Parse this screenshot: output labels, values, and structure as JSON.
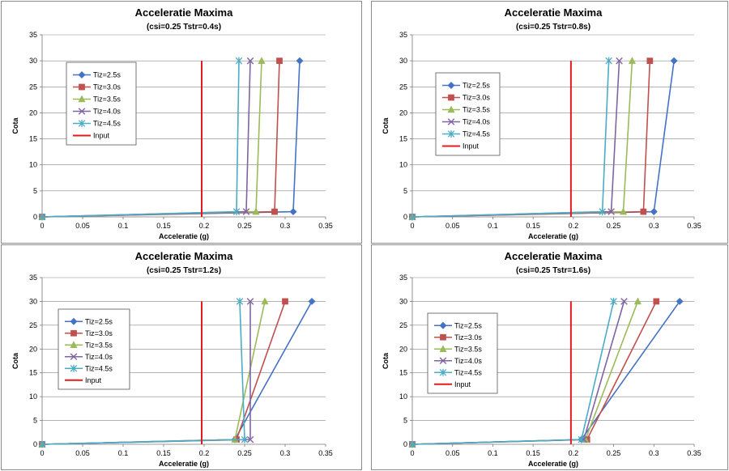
{
  "series_styles": [
    {
      "name": "Tiz=2.5s",
      "color": "#4472c4",
      "marker": "diamond"
    },
    {
      "name": "Tiz=3.0s",
      "color": "#c0504d",
      "marker": "square"
    },
    {
      "name": "Tiz=3.5s",
      "color": "#9bbb59",
      "marker": "triangle"
    },
    {
      "name": "Tiz=4.0s",
      "color": "#8064a2",
      "marker": "x"
    },
    {
      "name": "Tiz=4.5s",
      "color": "#4bacc6",
      "marker": "star"
    },
    {
      "name": "Input",
      "color": "#e41a1c",
      "marker": "none"
    }
  ],
  "chart_data": [
    {
      "type": "line",
      "title": "Acceleratie Maxima",
      "subtitle": "(csi=0.25  Tstr=0.4s)",
      "xlabel": "Acceleratie (g)",
      "ylabel": "Cota",
      "xlim": [
        0,
        0.35
      ],
      "ylim": [
        0,
        35
      ],
      "xticks": [
        "0",
        "0.05",
        "0.1",
        "0.15",
        "0.2",
        "0.25",
        "0.3",
        "0.35"
      ],
      "yticks": [
        "0",
        "5",
        "10",
        "15",
        "20",
        "25",
        "30",
        "35"
      ],
      "grid": true,
      "legend_position": "upper-left",
      "series": [
        {
          "name": "Tiz=2.5s",
          "points": [
            [
              0,
              0
            ],
            [
              0.31,
              1
            ],
            [
              0.318,
              30
            ]
          ]
        },
        {
          "name": "Tiz=3.0s",
          "points": [
            [
              0,
              0
            ],
            [
              0.287,
              1
            ],
            [
              0.293,
              30
            ]
          ]
        },
        {
          "name": "Tiz=3.5s",
          "points": [
            [
              0,
              0
            ],
            [
              0.264,
              1
            ],
            [
              0.271,
              30
            ]
          ]
        },
        {
          "name": "Tiz=4.0s",
          "points": [
            [
              0,
              0
            ],
            [
              0.252,
              1
            ],
            [
              0.257,
              30
            ]
          ]
        },
        {
          "name": "Tiz=4.5s",
          "points": [
            [
              0,
              0
            ],
            [
              0.24,
              1
            ],
            [
              0.243,
              30
            ]
          ]
        },
        {
          "name": "Input",
          "points": [
            [
              0.197,
              0
            ],
            [
              0.197,
              30
            ]
          ]
        }
      ]
    },
    {
      "type": "line",
      "title": "Acceleratie Maxima",
      "subtitle": "(csi=0.25  Tstr=0.8s)",
      "xlabel": "Acceleratie (g)",
      "ylabel": "Cota",
      "xlim": [
        0,
        0.35
      ],
      "ylim": [
        0,
        35
      ],
      "xticks": [
        "0",
        "0.05",
        "0.1",
        "0.15",
        "0.2",
        "0.25",
        "0.3",
        "0.35"
      ],
      "yticks": [
        "0",
        "5",
        "10",
        "15",
        "20",
        "25",
        "30",
        "35"
      ],
      "grid": true,
      "legend_position": "upper-left",
      "series": [
        {
          "name": "Tiz=2.5s",
          "points": [
            [
              0,
              0
            ],
            [
              0.3,
              1
            ],
            [
              0.325,
              30
            ]
          ]
        },
        {
          "name": "Tiz=3.0s",
          "points": [
            [
              0,
              0
            ],
            [
              0.287,
              1
            ],
            [
              0.295,
              30
            ]
          ]
        },
        {
          "name": "Tiz=3.5s",
          "points": [
            [
              0,
              0
            ],
            [
              0.262,
              1
            ],
            [
              0.273,
              30
            ]
          ]
        },
        {
          "name": "Tiz=4.0s",
          "points": [
            [
              0,
              0
            ],
            [
              0.247,
              1
            ],
            [
              0.257,
              30
            ]
          ]
        },
        {
          "name": "Tiz=4.5s",
          "points": [
            [
              0,
              0
            ],
            [
              0.236,
              1
            ],
            [
              0.244,
              30
            ]
          ]
        },
        {
          "name": "Input",
          "points": [
            [
              0.197,
              0
            ],
            [
              0.197,
              30
            ]
          ]
        }
      ]
    },
    {
      "type": "line",
      "title": "Acceleratie Maxima",
      "subtitle": "(csi=0.25  Tstr=1.2s)",
      "xlabel": "Acceleratie (g)",
      "ylabel": "Cota",
      "xlim": [
        0,
        0.35
      ],
      "ylim": [
        0,
        35
      ],
      "xticks": [
        "0",
        "0.05",
        "0.1",
        "0.15",
        "0.2",
        "0.25",
        "0.3",
        "0.35"
      ],
      "yticks": [
        "0",
        "5",
        "10",
        "15",
        "20",
        "25",
        "30",
        "35"
      ],
      "grid": true,
      "legend_position": "upper-left",
      "series": [
        {
          "name": "Tiz=2.5s",
          "points": [
            [
              0,
              0
            ],
            [
              0.238,
              1
            ],
            [
              0.333,
              30
            ]
          ]
        },
        {
          "name": "Tiz=3.0s",
          "points": [
            [
              0,
              0
            ],
            [
              0.24,
              1
            ],
            [
              0.3,
              30
            ]
          ]
        },
        {
          "name": "Tiz=3.5s",
          "points": [
            [
              0,
              0
            ],
            [
              0.238,
              1
            ],
            [
              0.275,
              30
            ]
          ]
        },
        {
          "name": "Tiz=4.0s",
          "points": [
            [
              0,
              0
            ],
            [
              0.257,
              1
            ],
            [
              0.257,
              30
            ]
          ]
        },
        {
          "name": "Tiz=4.5s",
          "points": [
            [
              0,
              0
            ],
            [
              0.25,
              1
            ],
            [
              0.244,
              30
            ]
          ]
        },
        {
          "name": "Input",
          "points": [
            [
              0.197,
              0
            ],
            [
              0.197,
              30
            ]
          ]
        }
      ]
    },
    {
      "type": "line",
      "title": "Acceleratie Maxima",
      "subtitle": "(csi=0.25  Tstr=1.6s)",
      "xlabel": "Acceleratie (g)",
      "ylabel": "Cota",
      "xlim": [
        0,
        0.35
      ],
      "ylim": [
        0,
        35
      ],
      "xticks": [
        "0",
        "0.05",
        "0.1",
        "0.15",
        "0.2",
        "0.25",
        "0.3",
        "0.35"
      ],
      "yticks": [
        "0",
        "5",
        "10",
        "15",
        "20",
        "25",
        "30",
        "35"
      ],
      "grid": true,
      "legend_position": "upper-left",
      "series": [
        {
          "name": "Tiz=2.5s",
          "points": [
            [
              0,
              0
            ],
            [
              0.21,
              1
            ],
            [
              0.332,
              30
            ]
          ]
        },
        {
          "name": "Tiz=3.0s",
          "points": [
            [
              0,
              0
            ],
            [
              0.217,
              1
            ],
            [
              0.303,
              30
            ]
          ]
        },
        {
          "name": "Tiz=3.5s",
          "points": [
            [
              0,
              0
            ],
            [
              0.215,
              1
            ],
            [
              0.28,
              30
            ]
          ]
        },
        {
          "name": "Tiz=4.0s",
          "points": [
            [
              0,
              0
            ],
            [
              0.213,
              1
            ],
            [
              0.263,
              30
            ]
          ]
        },
        {
          "name": "Tiz=4.5s",
          "points": [
            [
              0,
              0
            ],
            [
              0.21,
              1
            ],
            [
              0.25,
              30
            ]
          ]
        },
        {
          "name": "Input",
          "points": [
            [
              0.197,
              0
            ],
            [
              0.197,
              30
            ]
          ]
        }
      ]
    }
  ]
}
